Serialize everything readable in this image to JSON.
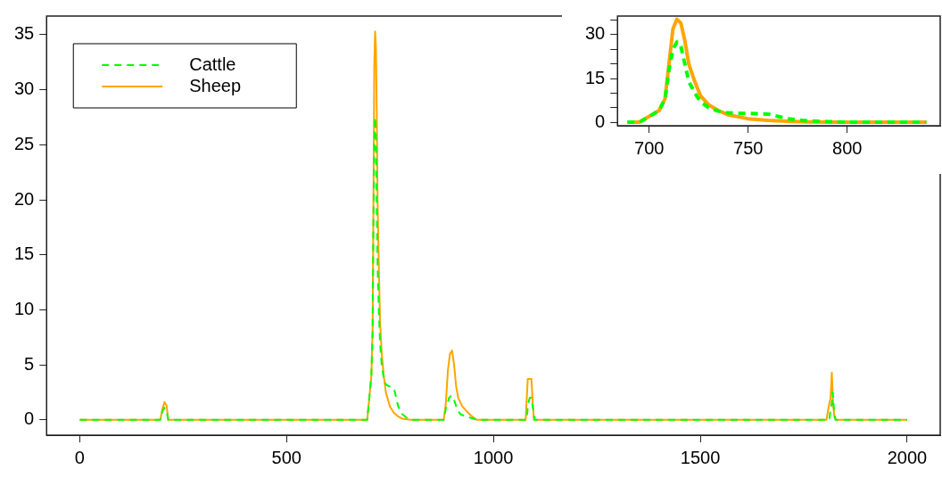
{
  "chart_data": [
    {
      "type": "line",
      "legend": "top left",
      "xlim": [
        -80,
        2080
      ],
      "ylim": [
        -1.4,
        36.7
      ],
      "xticks": [
        0,
        500,
        1000,
        1500,
        2000
      ],
      "yticks": [
        0,
        5,
        10,
        15,
        20,
        25,
        30,
        35
      ],
      "series": [
        {
          "name": "Cattle",
          "color": "#00ff00",
          "line_style": "dashed",
          "x": [
            0,
            195,
            200,
            205,
            210,
            214,
            218,
            690,
            695,
            700,
            705,
            708,
            710,
            712,
            714,
            716,
            718,
            720,
            723,
            726,
            730,
            735,
            740,
            750,
            760,
            765,
            770,
            775,
            780,
            790,
            800,
            880,
            885,
            893,
            898,
            905,
            912,
            920,
            935,
            960,
            1075,
            1080,
            1084,
            1088,
            1092,
            1096,
            1100,
            1805,
            1812,
            1815,
            1818,
            1820,
            1823,
            1827,
            2000
          ],
          "values": [
            0,
            0,
            0.8,
            1.1,
            0.8,
            0,
            0,
            0,
            0,
            2,
            4,
            8,
            18,
            25,
            27.5,
            26,
            20,
            14,
            10,
            7,
            5,
            3.8,
            3.2,
            3,
            2.8,
            2,
            1.2,
            0.8,
            0.5,
            0.2,
            0,
            0,
            1,
            2,
            2.2,
            1.8,
            1,
            0.5,
            0.3,
            0,
            0,
            0,
            1.5,
            2,
            2,
            1,
            0,
            0,
            0,
            1,
            1.5,
            2.5,
            1,
            0,
            0
          ]
        },
        {
          "name": "Sheep",
          "color": "#ffa500",
          "line_style": "solid",
          "x": [
            0,
            195,
            200,
            205,
            210,
            214,
            218,
            690,
            695,
            700,
            705,
            708,
            710,
            712,
            714,
            716,
            718,
            720,
            723,
            726,
            730,
            735,
            740,
            750,
            760,
            770,
            780,
            800,
            880,
            885,
            890,
            895,
            900,
            905,
            910,
            915,
            925,
            935,
            945,
            960,
            1075,
            1078,
            1080,
            1083,
            1092,
            1095,
            1098,
            1100,
            1805,
            1812,
            1815,
            1818,
            1821,
            1824,
            1828,
            2000
          ],
          "values": [
            0,
            0,
            1,
            1.6,
            1.3,
            0,
            0,
            0,
            0,
            2,
            4,
            8,
            20,
            32,
            35.3,
            34,
            28,
            20,
            14,
            9,
            6,
            4,
            2.5,
            1.2,
            0.6,
            0.3,
            0.1,
            0,
            0,
            1.5,
            4.5,
            6,
            6.3,
            5,
            3,
            2,
            1.2,
            0.8,
            0.4,
            0,
            0,
            0,
            1.5,
            3.7,
            3.7,
            1.5,
            0,
            0,
            0,
            1.5,
            2,
            4.3,
            1.5,
            0.3,
            0,
            0
          ]
        }
      ]
    },
    {
      "type": "line",
      "xlim": [
        684,
        847
      ],
      "ylim": [
        -1.2,
        36.4
      ],
      "xticks": [
        700,
        750,
        800
      ],
      "yticks": [
        0,
        {
          "value": 5,
          "label": null
        },
        {
          "value": 10,
          "label": null
        },
        15,
        {
          "value": 20,
          "label": null
        },
        {
          "value": 25,
          "label": null
        },
        30,
        {
          "value": 35,
          "label": null
        }
      ],
      "series": [
        {
          "color": "#00ff00",
          "line_style": "dashed",
          "x": [
            689,
            695,
            700,
            705,
            708,
            710,
            712,
            714,
            716,
            718,
            720,
            723,
            726,
            730,
            735,
            740,
            750,
            760,
            765,
            770,
            775,
            780,
            790,
            800,
            840
          ],
          "values": [
            0,
            0,
            2,
            4,
            8,
            18,
            25,
            27.5,
            26,
            20,
            14,
            10,
            7,
            5,
            3.8,
            3.2,
            3,
            2.8,
            2,
            1.2,
            0.8,
            0.5,
            0.2,
            0,
            0
          ]
        },
        {
          "color": "#ffa500",
          "line_style": "solid",
          "x": [
            689,
            695,
            700,
            705,
            708,
            710,
            712,
            714,
            716,
            718,
            720,
            723,
            726,
            730,
            735,
            740,
            750,
            760,
            770,
            780,
            800,
            840
          ],
          "values": [
            0,
            0,
            2,
            4,
            8,
            20,
            32,
            35.3,
            34,
            28,
            20,
            14,
            9,
            6,
            4,
            2.5,
            1.2,
            0.6,
            0.3,
            0.1,
            0,
            0
          ]
        }
      ]
    }
  ]
}
